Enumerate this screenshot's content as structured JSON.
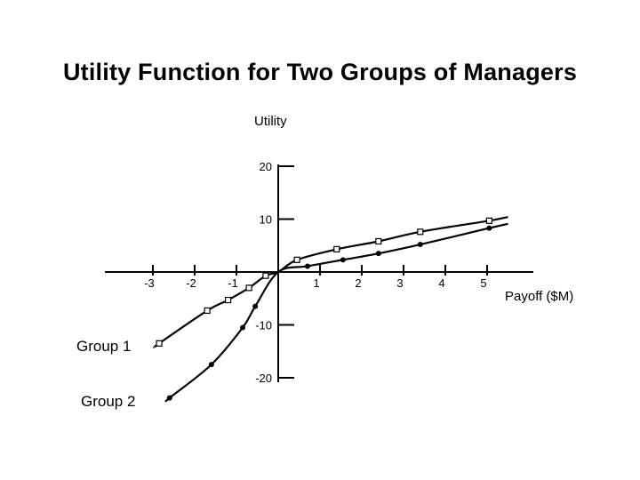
{
  "chart_data": {
    "type": "line",
    "title": "Utility Function for Two Groups of Managers",
    "xlabel": "Payoff ($M)",
    "ylabel": "Utility",
    "xlim": [
      -3.2,
      5.6
    ],
    "ylim": [
      -22,
      24
    ],
    "x_ticks": [
      -3,
      -2,
      -1,
      1,
      2,
      3,
      4,
      5
    ],
    "y_ticks": [
      20,
      10,
      -10,
      -20
    ],
    "x_tick_labels": [
      "-3",
      "-2",
      "-1",
      "1",
      "2",
      "3",
      "4",
      "5"
    ],
    "y_tick_labels": [
      "20",
      "10",
      "-10",
      "-20"
    ],
    "grid": false,
    "series": [
      {
        "name": "Group 1",
        "marker": "open-square",
        "x": [
          -2.85,
          -1.7,
          -1.2,
          -0.7,
          -0.3,
          0,
          0.45,
          1.4,
          2.4,
          3.4,
          5.05
        ],
        "y": [
          -13.5,
          -7.3,
          -5.3,
          -3.0,
          -0.7,
          0,
          2.3,
          4.3,
          5.8,
          7.6,
          9.7
        ]
      },
      {
        "name": "Group 2",
        "marker": "filled-circle",
        "x": [
          -2.6,
          -1.6,
          -0.85,
          -0.55,
          0,
          0.7,
          1.55,
          2.4,
          3.4,
          5.05
        ],
        "y": [
          -23.8,
          -17.5,
          -10.5,
          -6.5,
          0,
          1.1,
          2.3,
          3.5,
          5.2,
          8.3
        ]
      }
    ]
  }
}
